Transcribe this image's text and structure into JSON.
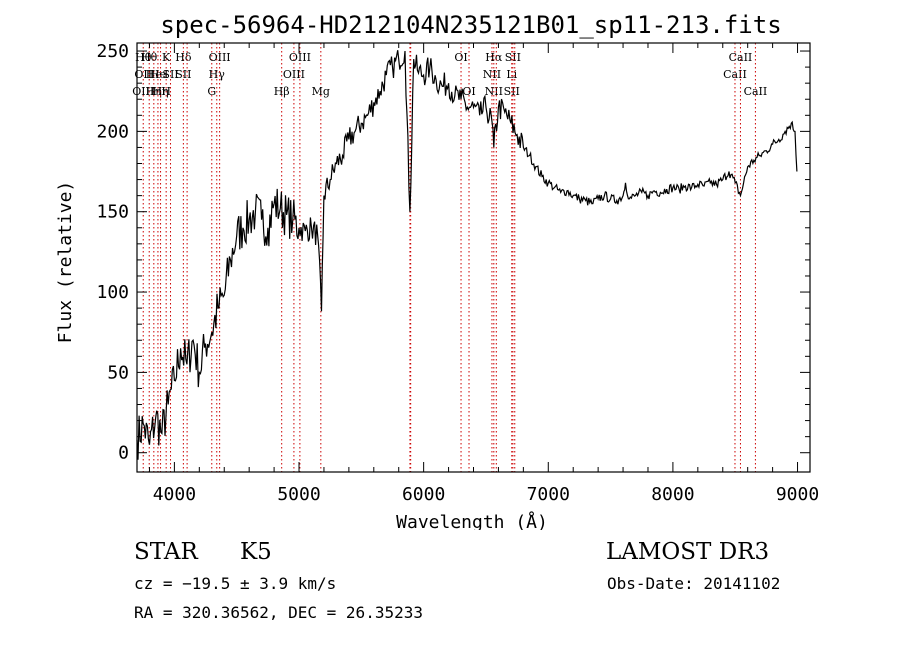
{
  "chart_data": {
    "type": "line",
    "title": "spec-56964-HD212104N235121B01_sp11-213.fits",
    "xlabel": "Wavelength (Å)",
    "ylabel": "Flux (relative)",
    "xlim": [
      3700,
      9100
    ],
    "ylim": [
      -12,
      255
    ],
    "xticks": [
      4000,
      5000,
      6000,
      7000,
      8000,
      9000
    ],
    "yticks": [
      0,
      50,
      100,
      150,
      200,
      250
    ],
    "grid": false,
    "series": [
      {
        "color": "#000000",
        "x": [
          3700,
          3750,
          3800,
          3850,
          3900,
          3950,
          4000,
          4050,
          4100,
          4150,
          4200,
          4250,
          4300,
          4350,
          4400,
          4450,
          4500,
          4550,
          4600,
          4650,
          4700,
          4750,
          4800,
          4850,
          4900,
          4950,
          5000,
          5050,
          5100,
          5150,
          5180,
          5200,
          5250,
          5300,
          5350,
          5400,
          5450,
          5500,
          5550,
          5600,
          5650,
          5700,
          5750,
          5800,
          5850,
          5890,
          5920,
          5950,
          6000,
          6050,
          6100,
          6150,
          6200,
          6250,
          6300,
          6350,
          6400,
          6450,
          6500,
          6550,
          6563,
          6600,
          6650,
          6700,
          6750,
          6800,
          6850,
          6900,
          6950,
          7000,
          7050,
          7100,
          7150,
          7200,
          7250,
          7300,
          7350,
          7400,
          7450,
          7500,
          7550,
          7600,
          7620,
          7650,
          7700,
          7750,
          7800,
          7850,
          7900,
          7950,
          8000,
          8050,
          8100,
          8150,
          8200,
          8250,
          8300,
          8350,
          8400,
          8450,
          8500,
          8542,
          8600,
          8650,
          8700,
          8750,
          8800,
          8850,
          8900,
          8950,
          8980,
          8995
        ],
        "y": [
          8,
          18,
          5,
          22,
          12,
          30,
          45,
          65,
          55,
          70,
          50,
          68,
          75,
          90,
          98,
          120,
          135,
          140,
          145,
          150,
          145,
          140,
          155,
          152,
          148,
          145,
          140,
          138,
          140,
          135,
          88,
          160,
          170,
          180,
          185,
          195,
          200,
          205,
          210,
          218,
          225,
          235,
          240,
          245,
          250,
          150,
          245,
          238,
          235,
          240,
          232,
          228,
          230,
          222,
          220,
          215,
          215,
          210,
          215,
          205,
          190,
          215,
          212,
          205,
          198,
          190,
          185,
          178,
          172,
          168,
          165,
          162,
          163,
          160,
          158,
          157,
          155,
          158,
          160,
          158,
          157,
          160,
          168,
          158,
          160,
          162,
          160,
          163,
          162,
          164,
          165,
          164,
          166,
          165,
          167,
          166,
          168,
          167,
          170,
          175,
          168,
          160,
          178,
          182,
          185,
          188,
          192,
          195,
          200,
          205,
          200,
          175
        ]
      }
    ],
    "lines": [
      {
        "x": 3750,
        "labels": [
          "Hθ",
          "OII",
          "OIII"
        ]
      },
      {
        "x": 3798,
        "labels": [
          "Hθ"
        ]
      },
      {
        "x": 3835,
        "labels": [
          "",
          "He",
          "Hη"
        ]
      },
      {
        "x": 3868,
        "labels": [
          "",
          "He",
          ""
        ]
      },
      {
        "x": 3889,
        "labels": [
          "",
          "",
          "Hη"
        ]
      },
      {
        "x": 3934,
        "labels": [
          "K",
          "I",
          "H"
        ]
      },
      {
        "x": 3969,
        "labels": [
          "",
          "SII",
          ""
        ]
      },
      {
        "x": 4072,
        "labels": [
          "Hδ",
          "SII",
          ""
        ]
      },
      {
        "x": 4102,
        "labels": [
          "",
          "",
          ""
        ]
      },
      {
        "x": 4300,
        "labels": [
          "",
          "",
          "G"
        ]
      },
      {
        "x": 4340,
        "labels": [
          "",
          "Hγ",
          ""
        ]
      },
      {
        "x": 4363,
        "labels": [
          "OIII",
          "",
          ""
        ]
      },
      {
        "x": 4861,
        "labels": [
          "",
          "",
          "Hβ"
        ]
      },
      {
        "x": 4959,
        "labels": [
          "",
          "OIII",
          ""
        ]
      },
      {
        "x": 5007,
        "labels": [
          "OIII",
          "",
          ""
        ]
      },
      {
        "x": 5175,
        "labels": [
          "",
          "",
          "Mg"
        ]
      },
      {
        "x": 5890,
        "labels": [
          "",
          "",
          ""
        ]
      },
      {
        "x": 5896,
        "labels": [
          "",
          "",
          ""
        ]
      },
      {
        "x": 6300,
        "labels": [
          "OI",
          "",
          ""
        ]
      },
      {
        "x": 6364,
        "labels": [
          "",
          "",
          "OI"
        ]
      },
      {
        "x": 6548,
        "labels": [
          "",
          "NII",
          ""
        ]
      },
      {
        "x": 6563,
        "labels": [
          "Hα",
          "",
          "NII"
        ]
      },
      {
        "x": 6583,
        "labels": [
          "",
          "",
          ""
        ]
      },
      {
        "x": 6707,
        "labels": [
          "",
          "Li",
          "SII"
        ]
      },
      {
        "x": 6716,
        "labels": [
          "SII",
          "",
          ""
        ]
      },
      {
        "x": 6731,
        "labels": [
          "",
          "",
          ""
        ]
      },
      {
        "x": 8498,
        "labels": [
          "",
          "CaII",
          ""
        ]
      },
      {
        "x": 8542,
        "labels": [
          "CaII",
          "",
          ""
        ]
      },
      {
        "x": 8662,
        "labels": [
          "",
          "",
          "CaII"
        ]
      }
    ]
  },
  "info": {
    "object_type": "STAR",
    "subclass": "K5",
    "survey": "LAMOST DR3",
    "cz": "cz = −19.5 ± 3.9 km/s",
    "obs_date": "Obs-Date: 20141102",
    "coords": "RA = 320.36562, DEC =  26.35233"
  }
}
